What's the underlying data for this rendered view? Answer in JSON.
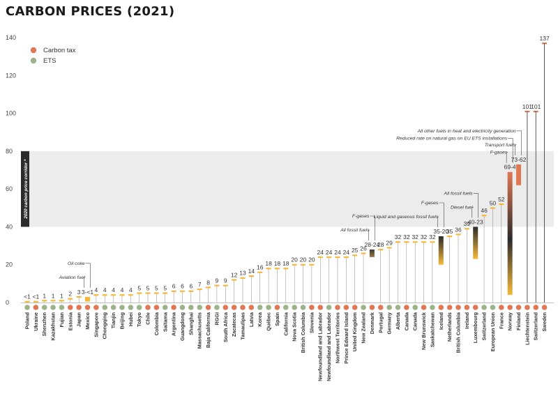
{
  "chart_data": {
    "type": "bar",
    "title": "CARBON PRICES (2021)",
    "xlabel": "",
    "ylabel": "",
    "ylim": [
      0,
      140
    ],
    "yticks": [
      0,
      20,
      40,
      60,
      80,
      100,
      120,
      140
    ],
    "legend": {
      "placement": "top-left",
      "items": [
        {
          "label": "Carbon tax",
          "color": "#e07856"
        },
        {
          "label": "ETS",
          "color": "#9db48a"
        }
      ]
    },
    "corridor": {
      "label": "2020 carbon price corridor *",
      "range": [
        40,
        80
      ],
      "color": "#ececec"
    },
    "colors": {
      "tax": "#e07856",
      "ets": "#9db48a",
      "bar_low": "#f5b93a",
      "bar_mid": "#2b2b2b",
      "bar_high": "#e07856",
      "axis": "#aaaaaa"
    },
    "bars": [
      {
        "name": "Poland",
        "type": "ets",
        "value": 0.5,
        "label": "<1"
      },
      {
        "name": "Ukraine",
        "type": "tax",
        "value": 0.5,
        "label": "<1"
      },
      {
        "name": "Shenzhen",
        "type": "ets",
        "value": 1,
        "label": "1"
      },
      {
        "name": "Kazakhstan",
        "type": "ets",
        "value": 1,
        "label": "1"
      },
      {
        "name": "Fujian",
        "type": "ets",
        "value": 1,
        "label": "1"
      },
      {
        "name": "Estonia",
        "type": "tax",
        "value": 2,
        "label": "2"
      },
      {
        "name": "Japan",
        "type": "tax",
        "value": 3,
        "label": "3"
      },
      {
        "name": "Mexico",
        "type": "tax",
        "value": 3,
        "low": 0.5,
        "label": "3-<1",
        "annotations": [
          "Oil coke",
          "Aviation fuel"
        ]
      },
      {
        "name": "Singapore",
        "type": "tax",
        "value": 4,
        "label": "4"
      },
      {
        "name": "Chongqing",
        "type": "ets",
        "value": 4,
        "label": "4"
      },
      {
        "name": "Tianjin",
        "type": "ets",
        "value": 4,
        "label": "4"
      },
      {
        "name": "Beijing",
        "type": "ets",
        "value": 4,
        "label": "4"
      },
      {
        "name": "Hubei",
        "type": "ets",
        "value": 4,
        "label": "4"
      },
      {
        "name": "Tokyo",
        "type": "ets",
        "value": 5,
        "label": "5"
      },
      {
        "name": "Chile",
        "type": "tax",
        "value": 5,
        "label": "5"
      },
      {
        "name": "Colombia",
        "type": "tax",
        "value": 5,
        "label": "5"
      },
      {
        "name": "Saitama",
        "type": "ets",
        "value": 5,
        "label": "5"
      },
      {
        "name": "Argentina",
        "type": "tax",
        "value": 6,
        "label": "6"
      },
      {
        "name": "Guangdong",
        "type": "ets",
        "value": 6,
        "label": "6"
      },
      {
        "name": "Shanghai",
        "type": "ets",
        "value": 6,
        "label": "6"
      },
      {
        "name": "Massachusetts",
        "type": "ets",
        "value": 7,
        "label": "7"
      },
      {
        "name": "Baja California",
        "type": "tax",
        "value": 8,
        "label": "8"
      },
      {
        "name": "RGGI",
        "type": "ets",
        "value": 9,
        "label": "9"
      },
      {
        "name": "South Africa",
        "type": "tax",
        "value": 9,
        "label": "9"
      },
      {
        "name": "Zacatecas",
        "type": "tax",
        "value": 12,
        "label": "12"
      },
      {
        "name": "Tamaulipas",
        "type": "tax",
        "value": 13,
        "label": "13"
      },
      {
        "name": "Latvia",
        "type": "tax",
        "value": 14,
        "label": "14"
      },
      {
        "name": "Korea",
        "type": "ets",
        "value": 16,
        "label": "16"
      },
      {
        "name": "Québec",
        "type": "ets",
        "value": 18,
        "label": "18"
      },
      {
        "name": "Spain",
        "type": "tax",
        "value": 18,
        "label": "18"
      },
      {
        "name": "California",
        "type": "ets",
        "value": 18,
        "label": "18"
      },
      {
        "name": "Nova Scotia",
        "type": "ets",
        "value": 20,
        "label": "20"
      },
      {
        "name": "British Columbia",
        "type": "ets",
        "value": 20,
        "label": "20"
      },
      {
        "name": "Slovenia",
        "type": "tax",
        "value": 20,
        "label": "20"
      },
      {
        "name": "Newfoundland and Labrador",
        "type": "tax",
        "value": 24,
        "label": "24"
      },
      {
        "name": "Newfoundland and Labrador",
        "type": "ets",
        "value": 24,
        "label": "24"
      },
      {
        "name": "Northwest Territories",
        "type": "tax",
        "value": 24,
        "label": "24"
      },
      {
        "name": "Prince Edward Island",
        "type": "tax",
        "value": 24,
        "label": "24"
      },
      {
        "name": "United Kingdom",
        "type": "tax",
        "value": 25,
        "label": "25"
      },
      {
        "name": "New Zealand",
        "type": "ets",
        "value": 26,
        "label": "26"
      },
      {
        "name": "Denmark",
        "type": "tax",
        "value": 28,
        "low": 24,
        "label": "28-24",
        "annotations": [
          "F-gases",
          "All fossil fuels"
        ]
      },
      {
        "name": "Portugal",
        "type": "tax",
        "value": 28,
        "label": "28"
      },
      {
        "name": "Germany",
        "type": "ets",
        "value": 29,
        "label": "29"
      },
      {
        "name": "Alberta",
        "type": "ets",
        "value": 32,
        "label": "32"
      },
      {
        "name": "Canada",
        "type": "tax",
        "value": 32,
        "label": "32"
      },
      {
        "name": "Canada",
        "type": "ets",
        "value": 32,
        "label": "32"
      },
      {
        "name": "New Brunswick",
        "type": "tax",
        "value": 32,
        "label": "32"
      },
      {
        "name": "Saskatchewan",
        "type": "ets",
        "value": 32,
        "label": "32"
      },
      {
        "name": "Iceland",
        "type": "tax",
        "value": 35,
        "low": 20,
        "label": "35-20",
        "annotations": [
          "F-gases",
          "Liquid and gaseous fossil fuels"
        ]
      },
      {
        "name": "Netherlands",
        "type": "tax",
        "value": 35,
        "label": "35"
      },
      {
        "name": "British Columbia",
        "type": "tax",
        "value": 36,
        "label": "36"
      },
      {
        "name": "Ireland",
        "type": "tax",
        "value": 39,
        "label": "39"
      },
      {
        "name": "Luxembourg",
        "type": "tax",
        "value": 40,
        "low": 23,
        "label": "40-23",
        "annotations": [
          "All fossil fuels",
          "Diesel fuel"
        ]
      },
      {
        "name": "Switzerland",
        "type": "ets",
        "value": 46,
        "label": "46"
      },
      {
        "name": "European Union",
        "type": "ets",
        "value": 50,
        "label": "50"
      },
      {
        "name": "France",
        "type": "tax",
        "value": 52,
        "label": "52"
      },
      {
        "name": "Norway",
        "type": "tax",
        "value": 69,
        "low": 4,
        "label": "69-4",
        "annotations": [
          "Reduced rate on natural gas on EU ETS installations",
          "F-gases"
        ]
      },
      {
        "name": "Finland",
        "type": "tax",
        "value": 73,
        "low": 62,
        "label": "73-62",
        "annotations": [
          "All other fuels in heat and electricity generation",
          "Transport fuels"
        ]
      },
      {
        "name": "Liechtenstein",
        "type": "tax",
        "value": 101,
        "label": "101"
      },
      {
        "name": "Switzerland",
        "type": "tax",
        "value": 101,
        "label": "101"
      },
      {
        "name": "Sweden",
        "type": "tax",
        "value": 137,
        "label": "137"
      }
    ]
  }
}
